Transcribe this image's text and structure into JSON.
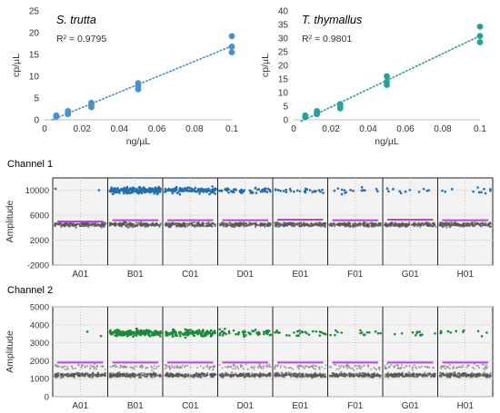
{
  "figure": {
    "channel1_title": "Channel 1",
    "channel2_title": "Channel 2"
  },
  "colors": {
    "s_trutta": "#4a90cf",
    "t_thymallus": "#2aa198",
    "channel1_positive": "#1f6fb2",
    "channel2_positive": "#1b8a3a",
    "negative": "#555555",
    "threshold": "#c040e0",
    "ddpcr_panel_bg": "#f3f3f3"
  },
  "chart_data": [
    {
      "type": "scatter",
      "title": "S. trutta",
      "annotation": "R² = 0.9795",
      "xlabel": "ng/µL",
      "ylabel": "cp/µL",
      "xlim": [
        0,
        0.1
      ],
      "ylim": [
        0,
        25
      ],
      "xticks": [
        "0",
        "0.02",
        "0.04",
        "0.06",
        "0.08",
        "0.1"
      ],
      "yticks": [
        "0",
        "5",
        "10",
        "15",
        "20",
        "25"
      ],
      "trendline": "dotted linear",
      "points": [
        [
          0.00625,
          0.7
        ],
        [
          0.00625,
          1.0
        ],
        [
          0.0125,
          1.3
        ],
        [
          0.0125,
          1.6
        ],
        [
          0.0125,
          2.0
        ],
        [
          0.025,
          2.9
        ],
        [
          0.025,
          3.4
        ],
        [
          0.025,
          3.9
        ],
        [
          0.05,
          7.0
        ],
        [
          0.05,
          7.8
        ],
        [
          0.05,
          8.4
        ],
        [
          0.1,
          15.5
        ],
        [
          0.1,
          16.8
        ],
        [
          0.1,
          19.2
        ]
      ]
    },
    {
      "type": "scatter",
      "title": "T. thymallus",
      "annotation": "R² = 0.9801",
      "xlabel": "ng/µL",
      "ylabel": "cp/µL",
      "xlim": [
        0,
        0.1
      ],
      "ylim": [
        0,
        40
      ],
      "xticks": [
        "0",
        "0.02",
        "0.04",
        "0.06",
        "0.08",
        "0.1"
      ],
      "yticks": [
        "0",
        "5",
        "10",
        "15",
        "20",
        "25",
        "30",
        "35",
        "40"
      ],
      "trendline": "dotted linear",
      "points": [
        [
          0.00625,
          1.0
        ],
        [
          0.00625,
          1.6
        ],
        [
          0.0125,
          2.1
        ],
        [
          0.0125,
          2.7
        ],
        [
          0.0125,
          3.2
        ],
        [
          0.025,
          4.2
        ],
        [
          0.025,
          5.0
        ],
        [
          0.025,
          5.8
        ],
        [
          0.05,
          12.8
        ],
        [
          0.05,
          14.0
        ],
        [
          0.05,
          16.0
        ],
        [
          0.1,
          28.5
        ],
        [
          0.1,
          30.8
        ],
        [
          0.1,
          34.2
        ]
      ]
    },
    {
      "type": "scatter",
      "title": "Channel 1",
      "ylabel": "Amplitude",
      "ylim": [
        -2000,
        12000
      ],
      "yticks": [
        "-2000",
        "2000",
        "6000",
        "10000"
      ],
      "wells": [
        "A01",
        "B01",
        "C01",
        "D01",
        "E01",
        "F01",
        "G01",
        "H01"
      ],
      "threshold": [
        5000,
        5200,
        5200,
        5200,
        5300,
        5200,
        5300,
        5200
      ],
      "negative_band": [
        4500,
        300
      ],
      "positive_band": [
        10000,
        400
      ],
      "positive_density": [
        0.01,
        1.0,
        0.6,
        0.28,
        0.14,
        0.08,
        0.06,
        0.06
      ]
    },
    {
      "type": "scatter",
      "title": "Channel 2",
      "ylabel": "Amplitude",
      "ylim": [
        0,
        5000
      ],
      "yticks": [
        "0",
        "1000",
        "2000",
        "3000",
        "4000",
        "5000"
      ],
      "wells": [
        "A01",
        "B01",
        "C01",
        "D01",
        "E01",
        "F01",
        "G01",
        "H01"
      ],
      "threshold": [
        1900,
        1900,
        1900,
        1900,
        1900,
        1900,
        1900,
        1900
      ],
      "negative_band": [
        1200,
        100
      ],
      "secondary_band": [
        1650,
        120
      ],
      "positive_band": [
        3550,
        150
      ],
      "positive_density": [
        0.01,
        1.0,
        0.6,
        0.28,
        0.14,
        0.08,
        0.06,
        0.06
      ]
    }
  ]
}
